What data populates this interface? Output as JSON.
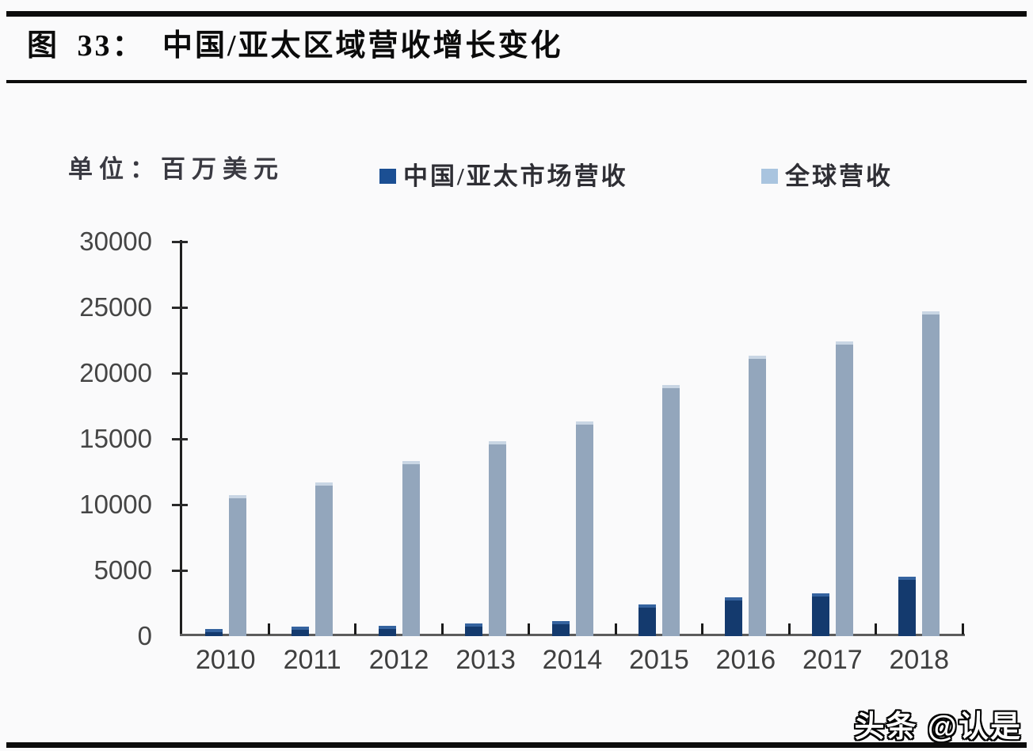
{
  "watermark": {
    "text": "头条 @认是"
  },
  "chart_data": {
    "type": "bar",
    "title": "图 33： 中国/亚太区域营收增长变化",
    "unit_label": "单位：百万美元",
    "categories": [
      "2010",
      "2011",
      "2012",
      "2013",
      "2014",
      "2015",
      "2016",
      "2017",
      "2018"
    ],
    "series": [
      {
        "key": "china-apac",
        "name": "中国/亚太市场营收",
        "color": "#143a6e",
        "cap_color": "#35639f",
        "legend_color": "#1b4f93",
        "values": [
          550,
          700,
          800,
          950,
          1150,
          2400,
          2950,
          3250,
          4500
        ]
      },
      {
        "key": "global",
        "name": "全球营收",
        "color": "#93a6bc",
        "cap_color": "#c9d6e4",
        "legend_color": "#a9c4df",
        "values": [
          10700,
          11700,
          13300,
          14800,
          16300,
          19100,
          21300,
          22400,
          24700
        ]
      }
    ],
    "xlabel": "",
    "ylabel": "",
    "ylim": [
      0,
      30000
    ],
    "yticks": [
      0,
      5000,
      10000,
      15000,
      20000,
      25000,
      30000
    ],
    "grid": false,
    "legend_position": "top"
  }
}
